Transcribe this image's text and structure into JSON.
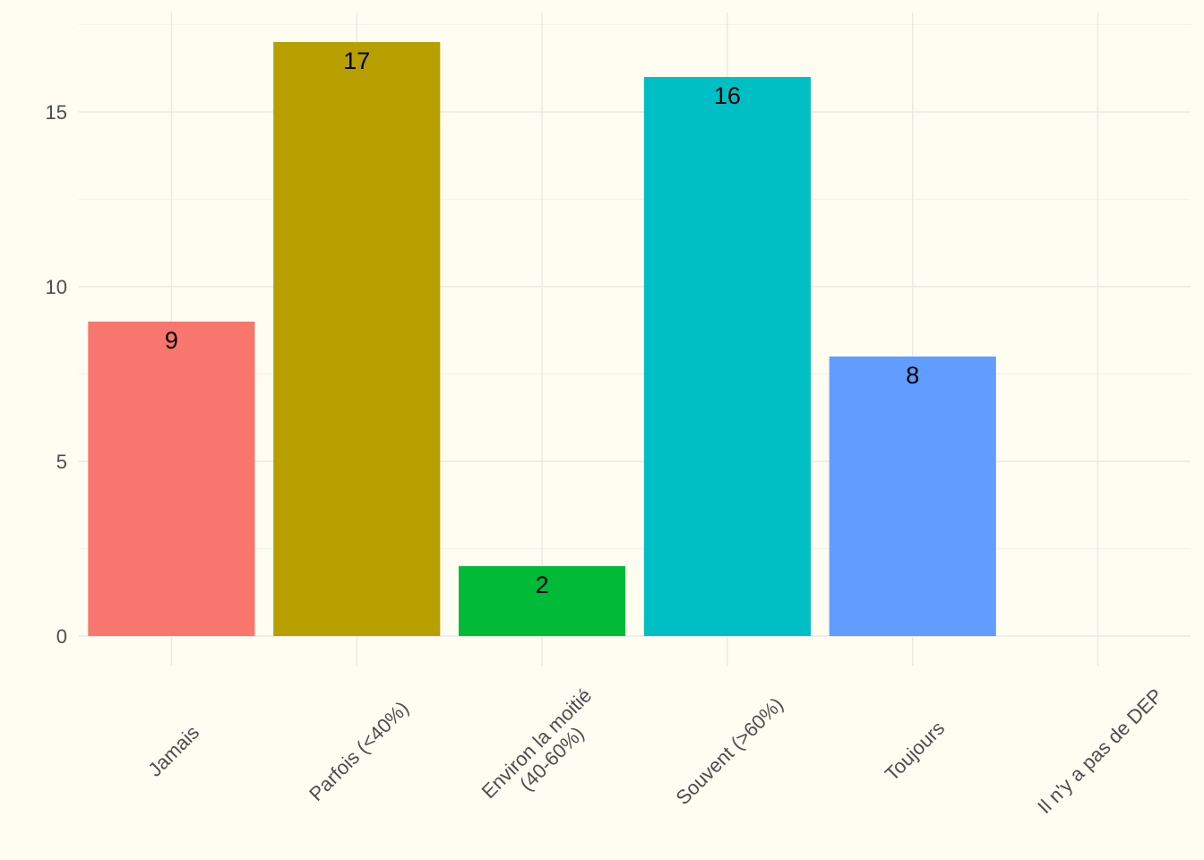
{
  "chart_data": {
    "type": "bar",
    "title": "",
    "xlabel": "",
    "ylabel": "",
    "categories": [
      "Jamais",
      "Parfois (<40%)",
      "Environ la moitié\n(40-60%)",
      "Souvent (>60%)",
      "Toujours",
      "Il n'y a pas de DEP"
    ],
    "values": [
      9,
      17,
      2,
      16,
      8,
      0
    ],
    "colors": [
      "#F8766D",
      "#B79F00",
      "#00BA38",
      "#00BFC4",
      "#619CFF",
      "#F564E3"
    ],
    "ylim": [
      0,
      17.5
    ],
    "yticks": [
      0,
      5,
      10,
      15
    ],
    "data_labels": [
      "9",
      "17",
      "2",
      "16",
      "8",
      ""
    ],
    "grid": true,
    "legend": "none",
    "background": "#fffdf2"
  }
}
